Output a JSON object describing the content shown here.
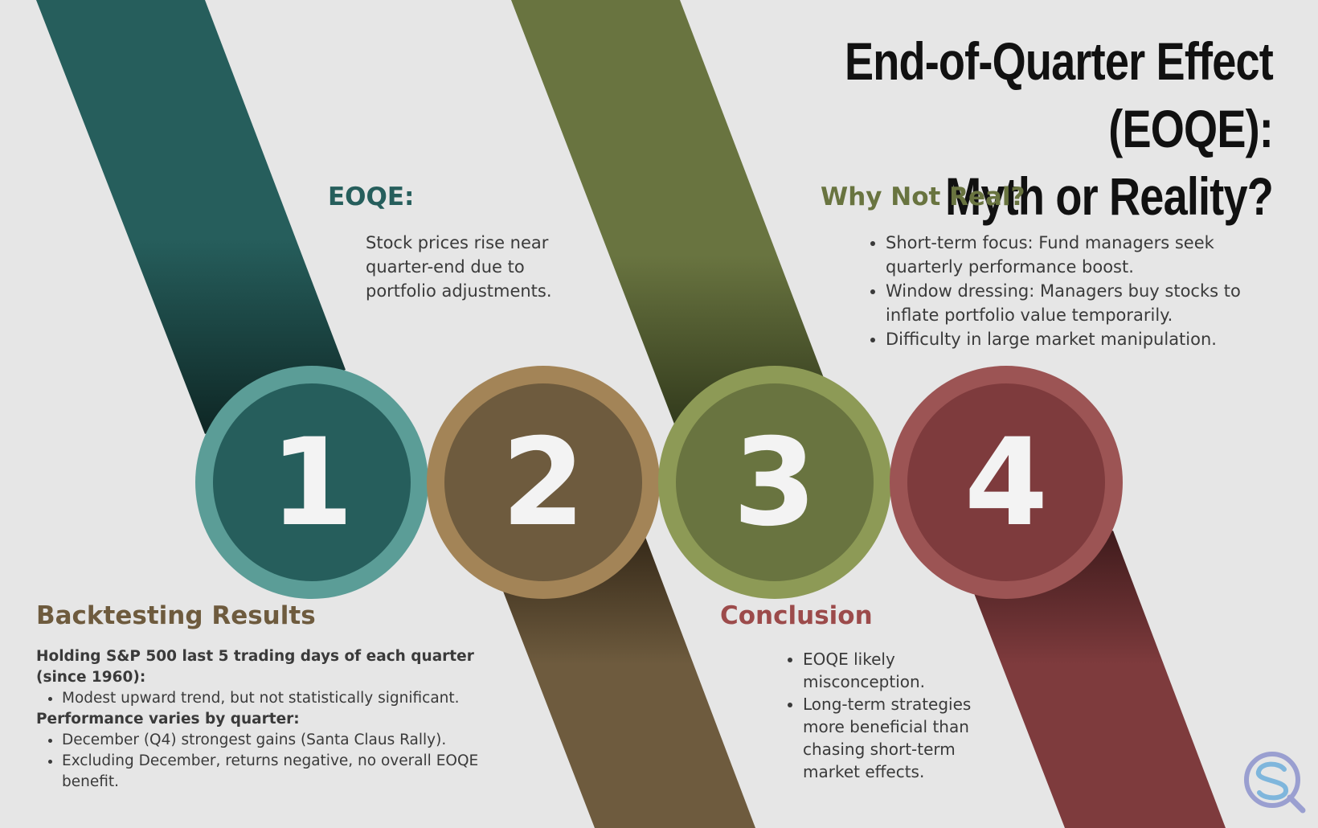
{
  "title": {
    "line1": "End-of-Quarter Effect (EOQE):",
    "line2": "Myth or Reality?"
  },
  "colors": {
    "background": "#e6e6e6",
    "teal": "#265e5c",
    "teal_ring": "#5b9d97",
    "brown": "#6e5b3e",
    "brown_ring": "#a38457",
    "olive": "#697440",
    "olive_ring": "#8d9a56",
    "red": "#7e3b3d",
    "red_ring": "#9c5454"
  },
  "steps": [
    {
      "number": "1",
      "color": "teal"
    },
    {
      "number": "2",
      "color": "brown"
    },
    {
      "number": "3",
      "color": "olive"
    },
    {
      "number": "4",
      "color": "red"
    }
  ],
  "eoqe": {
    "heading": "EOQE:",
    "lines": [
      "Stock prices rise near",
      "quarter-end due to",
      "portfolio adjustments."
    ]
  },
  "why_not_real": {
    "heading": "Why Not Real?",
    "items": [
      "Short-term focus: Fund managers seek quarterly performance boost.",
      "Window dressing: Managers buy stocks to inflate portfolio value temporarily.",
      "Difficulty in large market manipulation."
    ]
  },
  "backtesting": {
    "heading": "Backtesting Results",
    "intro": "Holding S&P 500 last 5 trading days of each quarter (since 1960):",
    "intro_items": [
      "Modest upward trend, but not statistically significant."
    ],
    "subhead": "Performance varies by quarter:",
    "items": [
      "December (Q4) strongest gains (Santa Claus Rally).",
      "Excluding December, returns negative, no overall EOQE benefit."
    ]
  },
  "conclusion": {
    "heading": "Conclusion",
    "items": [
      "EOQE likely misconception.",
      "Long-term strategies more beneficial than chasing short-term market effects."
    ]
  },
  "logo": {
    "icon": "magnifier-logo-icon"
  }
}
